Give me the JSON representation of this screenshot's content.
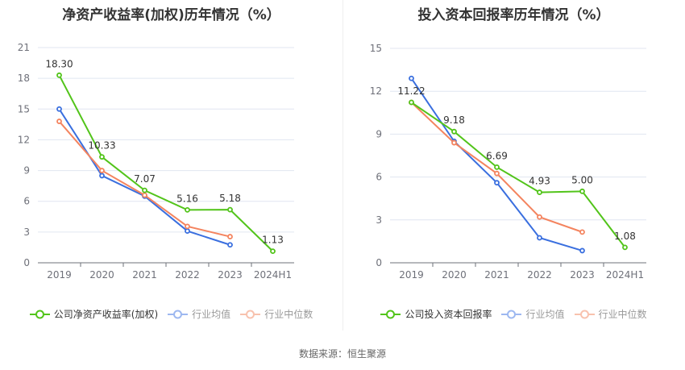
{
  "footer": {
    "source": "数据来源：恒生聚源"
  },
  "legend_labels": {
    "left": [
      "公司净资产收益率(加权)",
      "行业均值",
      "行业中位数"
    ],
    "right": [
      "公司投入资本回报率",
      "行业均值",
      "行业中位数"
    ]
  },
  "chart_data": [
    {
      "type": "line",
      "title": "净资产收益率(加权)历年情况（%）",
      "categories": [
        "2019",
        "2020",
        "2021",
        "2022",
        "2023",
        "2024H1"
      ],
      "ylim": [
        0,
        21
      ],
      "yticks": [
        0,
        3,
        6,
        9,
        12,
        15,
        18,
        21
      ],
      "grid": true,
      "legend_position": "bottom",
      "series": [
        {
          "name": "公司净资产收益率(加权)",
          "color": "#52c41a",
          "values": [
            18.3,
            10.33,
            7.07,
            5.16,
            5.18,
            1.13
          ],
          "labels": [
            "18.30",
            "10.33",
            "7.07",
            "5.16",
            "5.18",
            "1.13"
          ]
        },
        {
          "name": "行业均值",
          "color": "#3a6fdf",
          "values": [
            15.0,
            8.5,
            6.5,
            3.1,
            1.75,
            null
          ]
        },
        {
          "name": "行业中位数",
          "color": "#f4845f",
          "values": [
            13.8,
            9.0,
            6.6,
            3.55,
            2.55,
            null
          ]
        }
      ]
    },
    {
      "type": "line",
      "title": "投入资本回报率历年情况（%）",
      "categories": [
        "2019",
        "2020",
        "2021",
        "2022",
        "2023",
        "2024H1"
      ],
      "ylim": [
        0,
        15
      ],
      "yticks": [
        0,
        3,
        6,
        9,
        12,
        15
      ],
      "grid": true,
      "legend_position": "bottom",
      "series": [
        {
          "name": "公司投入资本回报率",
          "color": "#52c41a",
          "values": [
            11.22,
            9.18,
            6.69,
            4.93,
            5.0,
            1.08
          ],
          "labels": [
            "11.22",
            "9.18",
            "6.69",
            "4.93",
            "5.00",
            "1.08"
          ]
        },
        {
          "name": "行业均值",
          "color": "#3a6fdf",
          "values": [
            12.9,
            8.5,
            5.6,
            1.75,
            0.85,
            null
          ]
        },
        {
          "name": "行业中位数",
          "color": "#f4845f",
          "values": [
            11.22,
            8.4,
            6.25,
            3.2,
            2.15,
            null
          ]
        }
      ]
    }
  ]
}
